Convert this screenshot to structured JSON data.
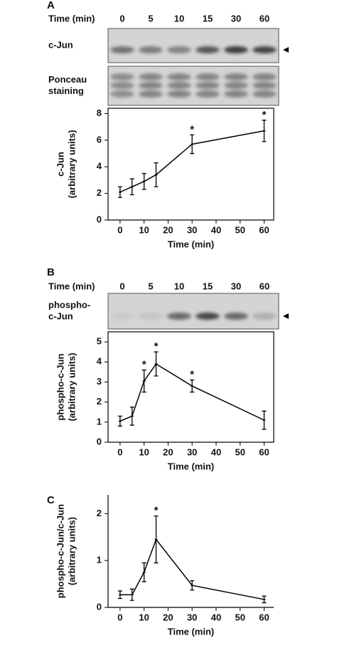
{
  "panels": [
    {
      "label": "A",
      "time_label": "Time (min)",
      "lanes": [
        "0",
        "5",
        "10",
        "15",
        "30",
        "60"
      ],
      "blots": [
        {
          "label": [
            "c-Jun"
          ]
        },
        {
          "label": [
            "Ponceau",
            "staining"
          ]
        }
      ]
    },
    {
      "label": "B",
      "time_label": "Time (min)",
      "lanes": [
        "0",
        "5",
        "10",
        "15",
        "30",
        "60"
      ],
      "blots": [
        {
          "label": [
            "phospho-",
            "c-Jun"
          ]
        }
      ]
    },
    {
      "label": "C"
    }
  ],
  "chart_data": [
    {
      "type": "line",
      "y_label": [
        "c-Jun",
        "(arbitrary units)"
      ],
      "x_label": "Time (min)",
      "x": [
        0,
        5,
        10,
        15,
        30,
        60
      ],
      "values": [
        2.1,
        2.5,
        2.9,
        3.4,
        5.7,
        6.7
      ],
      "errors": [
        0.4,
        0.6,
        0.6,
        0.9,
        0.7,
        0.8
      ],
      "color": "#000000",
      "box": true,
      "xlim": [
        -5,
        64
      ],
      "xticks": [
        0,
        10,
        20,
        30,
        40,
        50,
        60
      ],
      "ylim": [
        0,
        8.4
      ],
      "yticks": [
        0,
        2,
        4,
        6,
        8
      ],
      "annotations": [
        {
          "text": "*",
          "x": 30
        },
        {
          "text": "*",
          "x": 60
        }
      ]
    },
    {
      "type": "line",
      "y_label": [
        "phospho-c-Jun",
        "(arbitrary units)"
      ],
      "x_label": "Time (min)",
      "x": [
        0,
        5,
        10,
        15,
        30,
        60
      ],
      "values": [
        1.05,
        1.3,
        3.05,
        3.9,
        2.8,
        1.1
      ],
      "errors": [
        0.25,
        0.45,
        0.55,
        0.6,
        0.3,
        0.45
      ],
      "color": "#000000",
      "box": true,
      "xlim": [
        -5,
        64
      ],
      "xticks": [
        0,
        10,
        20,
        30,
        40,
        50,
        60
      ],
      "ylim": [
        0,
        5.5
      ],
      "yticks": [
        0,
        1,
        2,
        3,
        4,
        5
      ],
      "annotations": [
        {
          "text": "*",
          "x": 10
        },
        {
          "text": "*",
          "x": 15
        },
        {
          "text": "*",
          "x": 30
        }
      ]
    },
    {
      "type": "line",
      "y_label": [
        "phospho-c-Jun/c-Jun",
        "(arbitrary units)"
      ],
      "x_label": "Time (min)",
      "x": [
        0,
        5,
        10,
        15,
        30,
        60
      ],
      "values": [
        0.27,
        0.27,
        0.75,
        1.45,
        0.47,
        0.17
      ],
      "errors": [
        0.08,
        0.12,
        0.2,
        0.5,
        0.1,
        0.07
      ],
      "color": "#000000",
      "box": false,
      "xlim": [
        -5,
        64
      ],
      "xticks": [
        0,
        10,
        20,
        30,
        40,
        50,
        60
      ],
      "ylim": [
        0,
        2.4
      ],
      "yticks": [
        0,
        1,
        2
      ],
      "annotations": [
        {
          "text": "*",
          "x": 15
        }
      ]
    }
  ]
}
